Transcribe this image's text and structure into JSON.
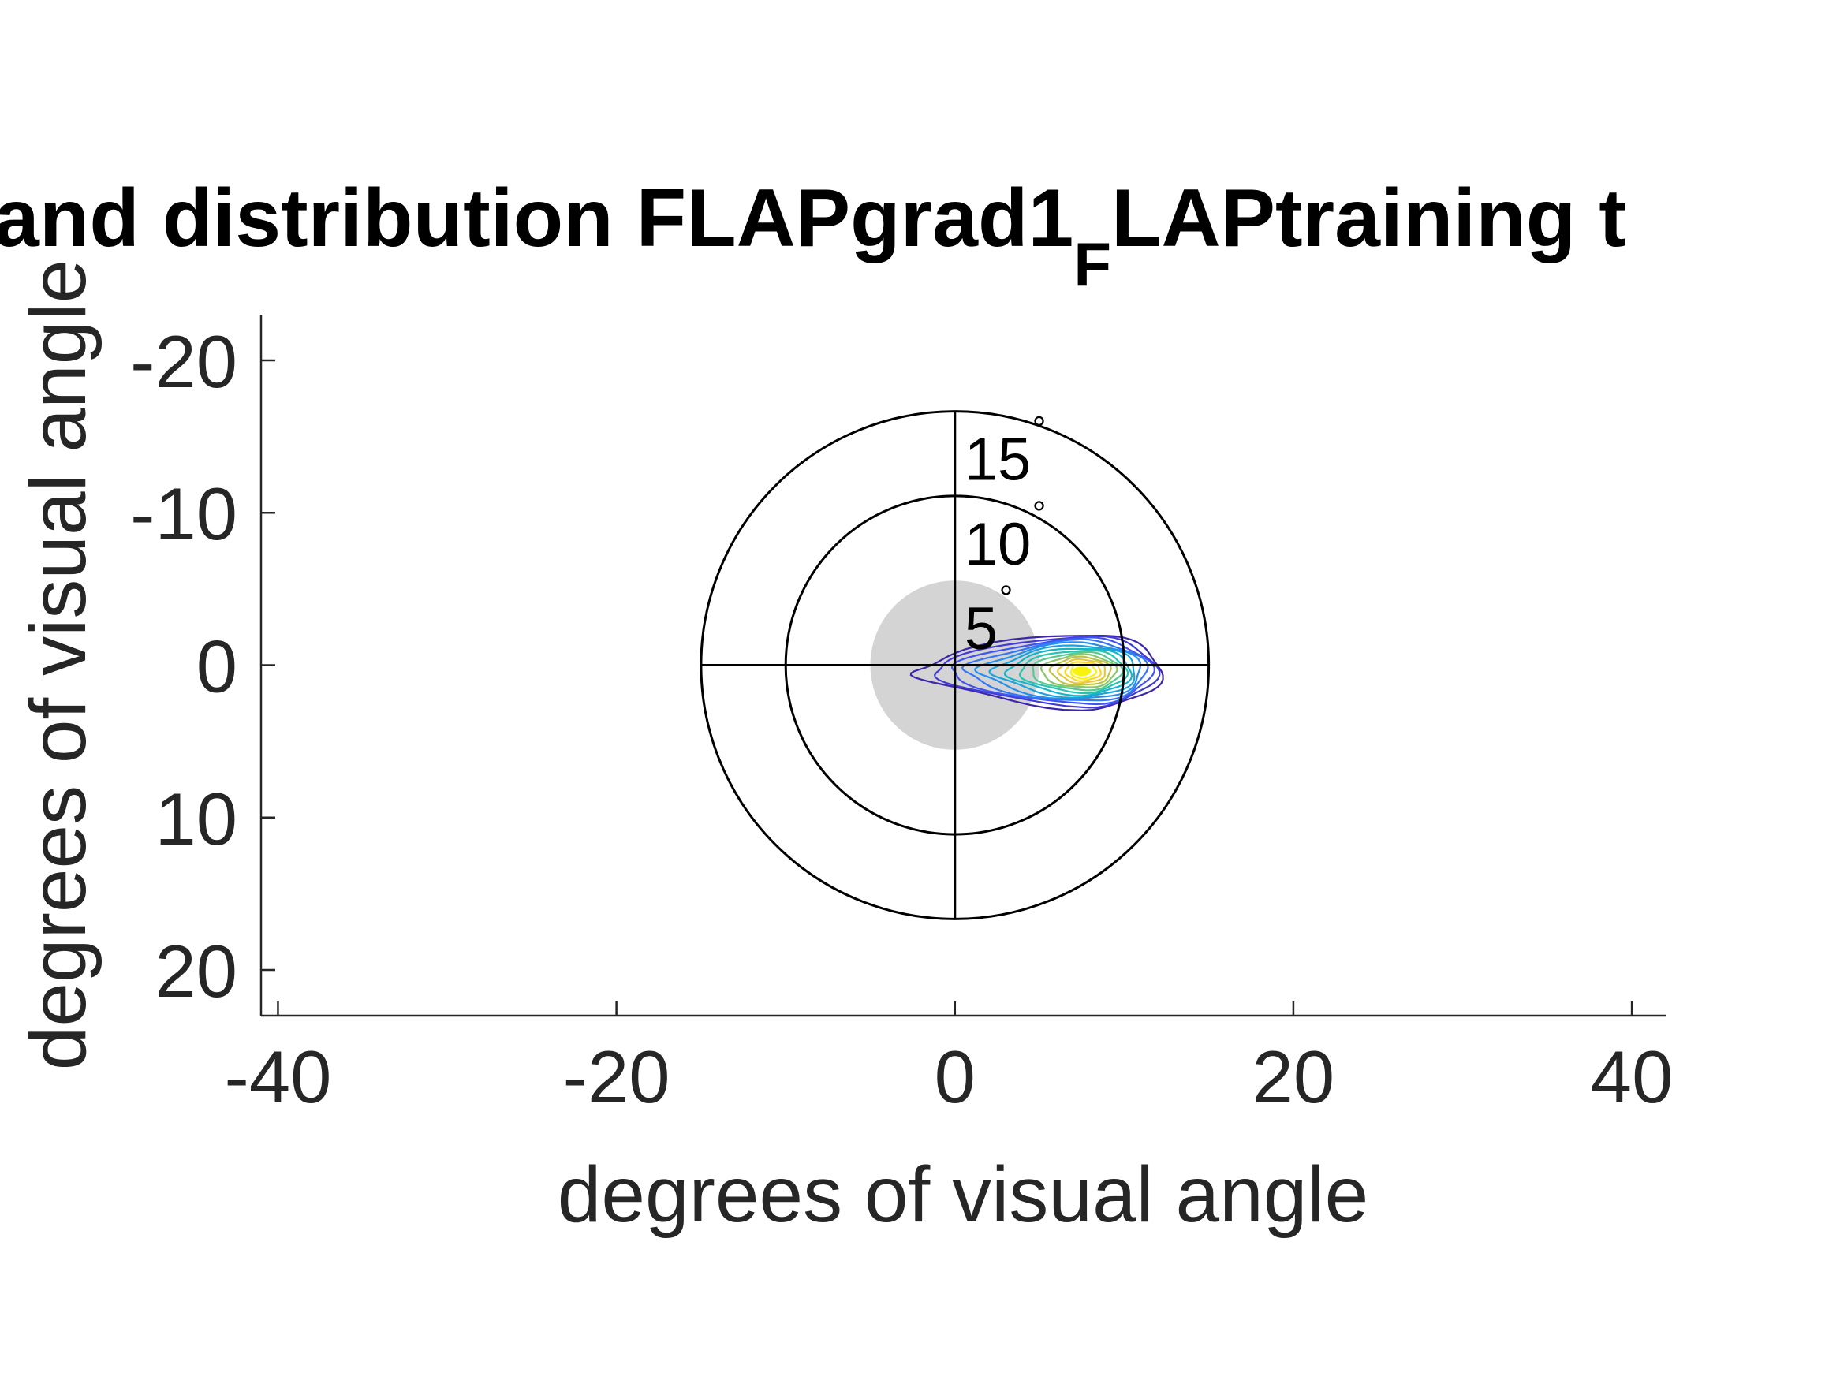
{
  "chart_data": {
    "type": "contour",
    "title": {
      "main": "and distribution FLAPgrad1",
      "subscript": "F",
      "rest": "LAPtraining t"
    },
    "xlabel": "degrees of visual angle",
    "ylabel": "degrees of visual angle",
    "xlim": [
      -41,
      42
    ],
    "ylim": [
      -23,
      23
    ],
    "y_reversed": true,
    "xticks": [
      -40,
      -20,
      0,
      20,
      40
    ],
    "xtick_labels": [
      "-40",
      "-20",
      "0",
      "20",
      "40"
    ],
    "yticks": [
      -20,
      -10,
      0,
      10,
      20
    ],
    "ytick_labels": [
      "-20",
      "-10",
      "0",
      "10",
      "20"
    ],
    "grid": false,
    "polar_rings": [
      {
        "radius": 5,
        "label": "5",
        "unit": "°"
      },
      {
        "radius": 10,
        "label": "10",
        "unit": "°"
      },
      {
        "radius": 15,
        "label": "15",
        "unit": "°"
      }
    ],
    "scotoma": {
      "center": [
        0,
        0
      ],
      "radius": 5,
      "color": "#d4d4d4"
    },
    "density": {
      "peak": [
        7.5,
        0.4
      ],
      "levels": 14,
      "colormap": [
        "#3e26a8",
        "#4446f0",
        "#2f7df6",
        "#1ca0e0",
        "#12bfbd",
        "#5acb8d",
        "#b1c34a",
        "#f4c83a",
        "#f9f20e"
      ]
    }
  },
  "colors": {
    "axis": "#262626",
    "rings": "#000000",
    "background": "#ffffff"
  }
}
